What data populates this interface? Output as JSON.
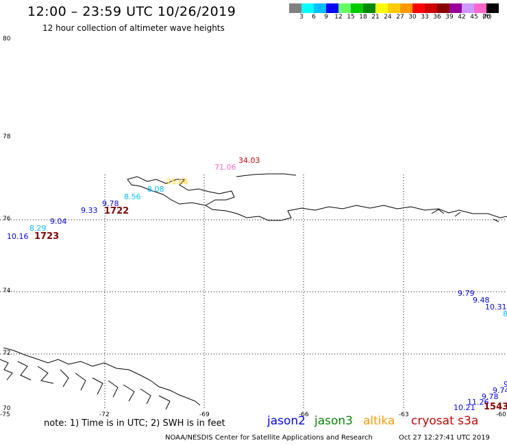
{
  "header": {
    "title": "12:00 – 23:59 UTC 10/26/2019",
    "subtitle": "12 hour collection of altimeter wave heights"
  },
  "color_scale": {
    "unit": "(ft)",
    "labels": [
      "3",
      "6",
      "9",
      "12",
      "15",
      "18",
      "21",
      "24",
      "27",
      "30",
      "33",
      "36",
      "39",
      "42",
      "45",
      "70"
    ],
    "colors": [
      "#808080",
      "#00ffff",
      "#00bfff",
      "#0000ff",
      "#66ff66",
      "#00cc00",
      "#008800",
      "#ffff00",
      "#ffcc00",
      "#ff9900",
      "#ff0000",
      "#cc0000",
      "#880000",
      "#990099",
      "#cc99ff",
      "#ff66cc",
      "#000000"
    ]
  },
  "lat_labels": [
    "80",
    "78",
    "76",
    "74",
    "72",
    "70"
  ],
  "lon_labels": [
    "-75",
    "-72",
    "-69",
    "-66",
    "-63",
    "-60"
  ],
  "observations": [
    {
      "text": "34.03",
      "color": "#cc0000"
    },
    {
      "text": "71.06",
      "color": "#ff66cc"
    },
    {
      "text": "25.86",
      "color": "#ffcc00"
    },
    {
      "text": "8.08",
      "color": "#00bfff"
    },
    {
      "text": "8.56",
      "color": "#00bfff"
    },
    {
      "text": "9.78",
      "color": "#0000ff"
    },
    {
      "text": "9.33",
      "color": "#0000ff"
    },
    {
      "text": "1722",
      "color": "#880000"
    },
    {
      "text": "9.04",
      "color": "#0000ff"
    },
    {
      "text": "8.29",
      "color": "#00bfff"
    },
    {
      "text": "10.16",
      "color": "#0000ff"
    },
    {
      "text": "1723",
      "color": "#880000"
    },
    {
      "text": "9.79",
      "color": "#0000ff"
    },
    {
      "text": "9.48",
      "color": "#0000ff"
    },
    {
      "text": "10.31",
      "color": "#0000ff"
    },
    {
      "text": "8",
      "color": "#00bfff"
    },
    {
      "text": "9",
      "color": "#0000ff"
    },
    {
      "text": "9.74",
      "color": "#0000ff"
    },
    {
      "text": "9.78",
      "color": "#0000ff"
    },
    {
      "text": "11.26",
      "color": "#0000ff"
    },
    {
      "text": "10.21",
      "color": "#0000ff"
    },
    {
      "text": "1543",
      "color": "#880000"
    }
  ],
  "footer": {
    "note": "note: 1) Time is in UTC; 2) SWH is in feet",
    "legend": [
      {
        "label": "jason2",
        "color": "#0000ff"
      },
      {
        "label": "jason3",
        "color": "#008800"
      },
      {
        "label": "altika",
        "color": "#ff9900"
      },
      {
        "label": "cryosat s3a",
        "color": "#cc0000"
      }
    ],
    "credit": "NOAA/NESDIS Center for Satellite Applications and Research",
    "timestamp": "Oct 27 12:27:41 UTC 2019"
  }
}
